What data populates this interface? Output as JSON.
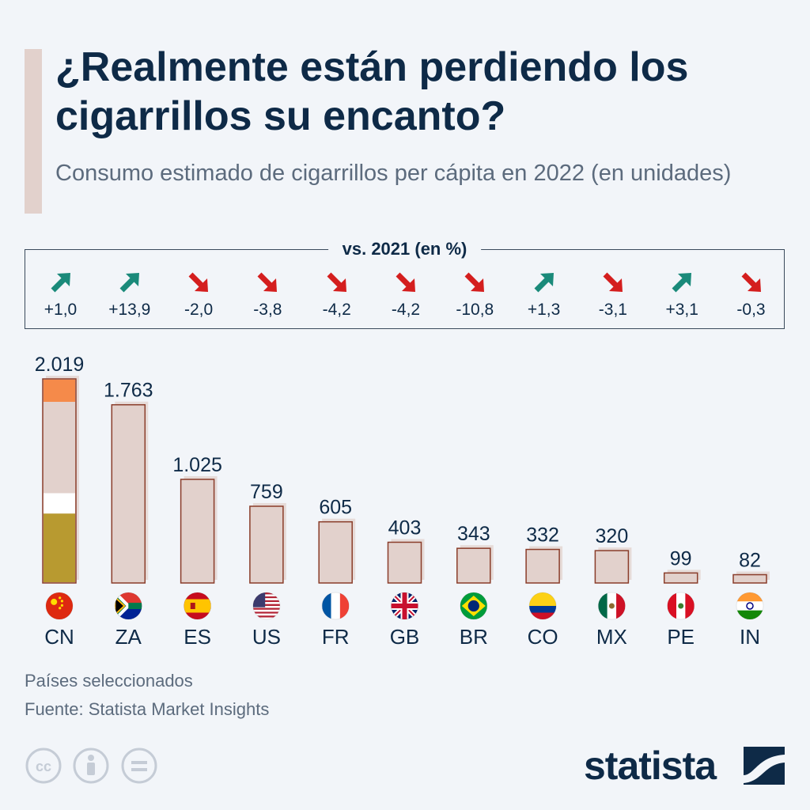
{
  "header": {
    "title": "¿Realmente están perdiendo los cigarrillos su encanto?",
    "subtitle": "Consumo estimado de cigarrillos per cápita en 2022 (en unidades)"
  },
  "change_panel": {
    "title": "vs. 2021 (en %)"
  },
  "chart_data": {
    "type": "bar",
    "title": "¿Realmente están perdiendo los cigarrillos su encanto?",
    "subtitle": "Consumo estimado de cigarrillos per cápita en 2022 (en unidades)",
    "categories": [
      "CN",
      "ZA",
      "ES",
      "US",
      "FR",
      "GB",
      "BR",
      "CO",
      "MX",
      "PE",
      "IN"
    ],
    "values": [
      2019,
      1763,
      1025,
      759,
      605,
      403,
      343,
      332,
      320,
      99,
      82
    ],
    "value_labels": [
      "2.019",
      "1.763",
      "1.025",
      "759",
      "605",
      "403",
      "343",
      "332",
      "320",
      "99",
      "82"
    ],
    "change_vs_2021_pct": [
      1.0,
      13.9,
      -2.0,
      -3.8,
      -4.2,
      -4.2,
      -10.8,
      1.3,
      -3.1,
      3.1,
      -0.3
    ],
    "change_labels": [
      "+1,0",
      "+13,9",
      "-2,0",
      "-3,8",
      "-4,2",
      "-4,2",
      "-10,8",
      "+1,3",
      "-3,1",
      "+3,1",
      "-0,3"
    ],
    "ylim": [
      0,
      2019
    ],
    "grid": false,
    "legend": "none"
  },
  "footer": {
    "note": "Países seleccionados",
    "source": "Fuente: Statista Market Insights"
  },
  "brand": {
    "name": "statista"
  },
  "icons": [
    "cc-icon",
    "attribution-icon",
    "no-derivatives-icon"
  ],
  "colors": {
    "text": "#0e2a47",
    "muted": "#5c6b7d",
    "bar_fill": "#e2d1cc",
    "bar_stroke": "#8a3d2a",
    "up": "#1a8a7a",
    "down": "#d41e1e",
    "cigarette_filter": "#b89a30",
    "cigarette_tip": "#f58a4a"
  }
}
